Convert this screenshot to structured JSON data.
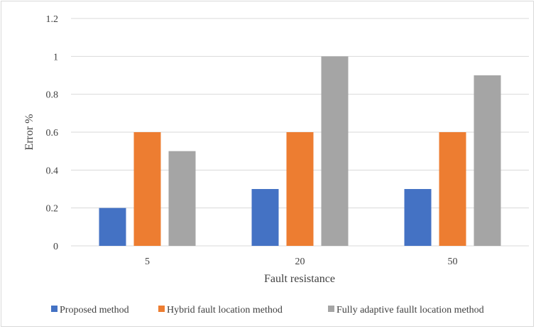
{
  "chart_data": {
    "type": "bar",
    "title": "",
    "xlabel": "Fault resistance",
    "ylabel": "Error %",
    "categories": [
      "5",
      "20",
      "50"
    ],
    "ylim": [
      0,
      1.2
    ],
    "yticks": [
      "0",
      "0.2",
      "0.4",
      "0.6",
      "0.8",
      "1",
      "1.2"
    ],
    "grid": true,
    "legend_position": "bottom",
    "series": [
      {
        "name": "Proposed method",
        "values": [
          0.2,
          0.3,
          0.3
        ],
        "color": "#4472c4"
      },
      {
        "name": "Hybrid fault location method",
        "values": [
          0.6,
          0.6,
          0.6
        ],
        "color": "#ed7d31"
      },
      {
        "name": "Fully adaptive faullt location method",
        "values": [
          0.5,
          1.0,
          0.9
        ],
        "color": "#a5a5a5"
      }
    ]
  }
}
